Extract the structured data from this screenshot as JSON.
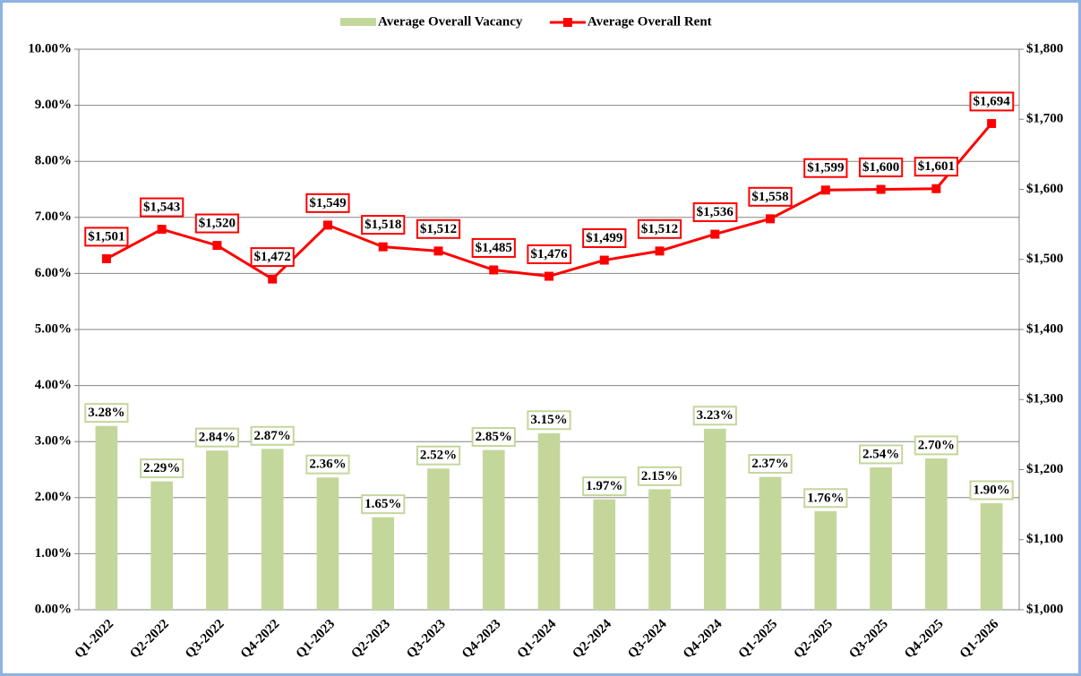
{
  "chart_data": {
    "type": "combo",
    "categories": [
      "Q1-2022",
      "Q2-2022",
      "Q3-2022",
      "Q4-2022",
      "Q1-2023",
      "Q2-2023",
      "Q3-2023",
      "Q4-2023",
      "Q1-2024",
      "Q2-2024",
      "Q3-2024",
      "Q4-2024",
      "Q1-2025",
      "Q2-2025",
      "Q3-2025",
      "Q4-2025",
      "Q1-2026"
    ],
    "series": [
      {
        "name": "Average Overall Vacancy",
        "type": "bar",
        "color": "#c4d79b",
        "values": [
          3.28,
          2.29,
          2.84,
          2.87,
          2.36,
          1.65,
          2.52,
          2.85,
          3.15,
          1.97,
          2.15,
          3.23,
          2.37,
          1.76,
          2.54,
          2.7,
          1.9
        ],
        "value_labels": [
          "3.28%",
          "2.29%",
          "2.84%",
          "2.87%",
          "2.36%",
          "1.65%",
          "2.52%",
          "2.85%",
          "3.15%",
          "1.97%",
          "2.15%",
          "3.23%",
          "2.37%",
          "1.76%",
          "2.54%",
          "2.70%",
          "1.90%"
        ]
      },
      {
        "name": "Average Overall Rent",
        "type": "line",
        "axis": "y2",
        "color": "#ff0000",
        "values": [
          1501,
          1543,
          1520,
          1472,
          1549,
          1518,
          1512,
          1485,
          1476,
          1499,
          1512,
          1536,
          1558,
          1599,
          1600,
          1601,
          1694
        ],
        "value_labels": [
          "$1,501",
          "$1,543",
          "$1,520",
          "$1,472",
          "$1,549",
          "$1,518",
          "$1,512",
          "$1,485",
          "$1,476",
          "$1,499",
          "$1,512",
          "$1,536",
          "$1,558",
          "$1,599",
          "$1,600",
          "$1,601",
          "$1,694"
        ]
      }
    ],
    "ylim": [
      0,
      10
    ],
    "yticks": [
      {
        "value": 0,
        "label": "0.00%"
      },
      {
        "value": 1,
        "label": "1.00%"
      },
      {
        "value": 2,
        "label": "2.00%"
      },
      {
        "value": 3,
        "label": "3.00%"
      },
      {
        "value": 4,
        "label": "4.00%"
      },
      {
        "value": 5,
        "label": "5.00%"
      },
      {
        "value": 6,
        "label": "6.00%"
      },
      {
        "value": 7,
        "label": "7.00%"
      },
      {
        "value": 8,
        "label": "8.00%"
      },
      {
        "value": 9,
        "label": "9.00%"
      },
      {
        "value": 10,
        "label": "10.00%"
      }
    ],
    "y2lim": [
      1000,
      1800
    ],
    "y2ticks": [
      {
        "value": 1000,
        "label": "$1,000"
      },
      {
        "value": 1100,
        "label": "$1,100"
      },
      {
        "value": 1200,
        "label": "$1,200"
      },
      {
        "value": 1300,
        "label": "$1,300"
      },
      {
        "value": 1400,
        "label": "$1,400"
      },
      {
        "value": 1500,
        "label": "$1,500"
      },
      {
        "value": 1600,
        "label": "$1,600"
      },
      {
        "value": 1700,
        "label": "$1,700"
      },
      {
        "value": 1800,
        "label": "$1,800"
      }
    ],
    "grid": true,
    "legend": "top"
  }
}
